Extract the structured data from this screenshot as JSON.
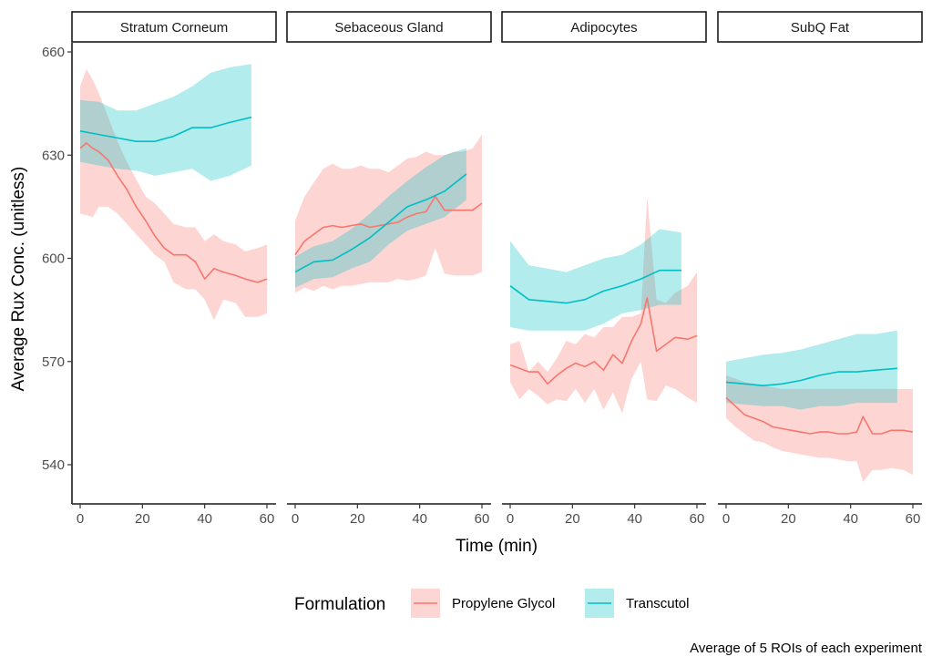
{
  "chart_data": {
    "type": "line",
    "title": "",
    "xlabel": "Time (min)",
    "ylabel": "Average Rux Conc. (unitless)",
    "caption": "Average of 5 ROIs of each experiment",
    "xlim": [
      -2,
      62
    ],
    "ylim": [
      529,
      663
    ],
    "x_ticks": [
      0,
      20,
      40,
      60
    ],
    "x_tick_labels": [
      "0",
      "20",
      "40",
      "60"
    ],
    "y_ticks": [
      540,
      570,
      600,
      630,
      660
    ],
    "y_tick_labels": [
      "540",
      "570",
      "600",
      "630",
      "660"
    ],
    "grid": false,
    "legend": {
      "title": "Formulation",
      "position": "bottom",
      "entries": [
        {
          "name": "Propylene Glycol",
          "line_color": "#F8766D",
          "fill_color": "#F8766D"
        },
        {
          "name": "Transcutol",
          "line_color": "#00BFC4",
          "fill_color": "#00BFC4"
        }
      ]
    },
    "panels": [
      {
        "label": "Stratum Corneum",
        "series": [
          {
            "name": "Propylene Glycol",
            "x": [
              0,
              2,
              4,
              6,
              9,
              12,
              15,
              18,
              21,
              24,
              27,
              30,
              34,
              37,
              40,
              43,
              46,
              50,
              53,
              57,
              60
            ],
            "mean": [
              632,
              633.5,
              632,
              631,
              628.5,
              624,
              620,
              615,
              611,
              606.5,
              603,
              601,
              601,
              599,
              594,
              597,
              596,
              595,
              594,
              593,
              594
            ],
            "lower": [
              613,
              612.5,
              612,
              615,
              615,
              613,
              610,
              607,
              604,
              601,
              599,
              593,
              591,
              591,
              588,
              582,
              588,
              587,
              583,
              583,
              584
            ],
            "upper": [
              650,
              655,
              652,
              648,
              641,
              634,
              628,
              623,
              618,
              616,
              613,
              610,
              609,
              609,
              605,
              607,
              605,
              604,
              602,
              603,
              604
            ]
          },
          {
            "name": "Transcutol",
            "x": [
              0,
              6,
              12,
              18,
              24,
              30,
              36,
              42,
              48,
              55
            ],
            "mean": [
              637,
              636,
              635,
              634,
              634,
              635.5,
              638,
              638,
              639.5,
              641
            ],
            "lower": [
              628,
              627,
              626,
              625.5,
              624,
              625,
              626,
              622.5,
              624,
              627
            ],
            "upper": [
              646,
              645.5,
              643,
              643,
              645,
              647,
              650,
              654,
              655.5,
              656.5
            ]
          }
        ]
      },
      {
        "label": "Sebaceous Gland",
        "series": [
          {
            "name": "Propylene Glycol",
            "x": [
              0,
              3,
              6,
              9,
              12,
              15,
              18,
              21,
              24,
              27,
              30,
              33,
              36,
              39,
              42,
              45,
              48,
              51,
              54,
              57,
              60
            ],
            "mean": [
              601,
              605,
              607,
              609,
              609.5,
              609,
              609.5,
              610,
              609,
              609.5,
              610,
              610.5,
              612,
              613,
              613.5,
              618,
              614,
              614,
              614,
              614,
              616
            ],
            "lower": [
              590,
              591.5,
              590.5,
              592,
              591,
              592,
              592,
              592.5,
              593,
              593,
              593,
              594,
              593.5,
              594,
              595,
              603,
              595.5,
              595,
              595,
              595,
              596
            ],
            "upper": [
              611,
              618,
              622,
              626,
              627.5,
              626,
              626,
              627,
              626,
              626,
              625,
              627,
              629,
              629.5,
              631,
              630,
              630,
              631,
              631,
              632,
              636
            ]
          },
          {
            "name": "Transcutol",
            "x": [
              0,
              6,
              12,
              18,
              24,
              30,
              36,
              42,
              48,
              55
            ],
            "mean": [
              596,
              599,
              599.5,
              602.5,
              606,
              610.5,
              615,
              617,
              619.5,
              624.5
            ],
            "lower": [
              591.5,
              594,
              594.5,
              597,
              599,
              604,
              608,
              610,
              612,
              617
            ],
            "upper": [
              600.5,
              603.5,
              605,
              608.5,
              613,
              618,
              622.5,
              626.5,
              630,
              632
            ]
          }
        ]
      },
      {
        "label": "Adipocytes",
        "series": [
          {
            "name": "Propylene Glycol",
            "x": [
              0,
              3,
              6,
              9,
              12,
              15,
              18,
              21,
              24,
              27,
              30,
              33,
              36,
              39,
              42,
              44,
              47,
              50,
              53,
              57,
              60
            ],
            "mean": [
              569,
              568,
              567,
              567,
              563.5,
              566,
              568,
              569.5,
              568.5,
              570,
              567.5,
              572,
              569.5,
              576,
              581,
              588.5,
              573,
              575,
              577,
              576.5,
              577.5
            ],
            "lower": [
              564,
              559,
              562,
              560,
              557.5,
              559,
              558.5,
              562,
              558,
              562,
              556,
              561,
              555,
              565,
              570,
              559,
              558.5,
              563,
              562,
              559.5,
              558
            ],
            "upper": [
              575,
              576,
              567,
              570,
              567,
              571,
              576,
              575,
              578,
              577,
              580,
              580,
              583,
              583,
              584,
              618,
              588,
              587,
              590,
              592,
              596
            ]
          },
          {
            "name": "Transcutol",
            "x": [
              0,
              6,
              12,
              18,
              24,
              30,
              36,
              42,
              48,
              55
            ],
            "mean": [
              592,
              588,
              587.5,
              587,
              588,
              590.5,
              592,
              594,
              596.5,
              596.5
            ],
            "lower": [
              580,
              579,
              579,
              579,
              579,
              581,
              584,
              585,
              586.5,
              586.5
            ],
            "upper": [
              605,
              598,
              597,
              596,
              598,
              600,
              601,
              604,
              608.5,
              607.5
            ]
          }
        ]
      },
      {
        "label": "SubQ Fat",
        "series": [
          {
            "name": "Propylene Glycol",
            "x": [
              0,
              3,
              6,
              9,
              12,
              15,
              18,
              21,
              24,
              27,
              30,
              33,
              36,
              39,
              42,
              44,
              47,
              50,
              53,
              57,
              60
            ],
            "mean": [
              559.5,
              557,
              554.5,
              553.5,
              552.5,
              551,
              550.5,
              550,
              549.5,
              549,
              549.5,
              549.5,
              549,
              549,
              549.5,
              554,
              549,
              549,
              550,
              550,
              549.5
            ],
            "lower": [
              553.5,
              551,
              549,
              547,
              546.5,
              545,
              544,
              543.5,
              543,
              542.5,
              542,
              542,
              541.5,
              541,
              541,
              535,
              538.5,
              538.5,
              539,
              538.5,
              537
            ],
            "upper": [
              566,
              565,
              564,
              563.5,
              563,
              562.5,
              562,
              562,
              562,
              562,
              562,
              562,
              562,
              562,
              562,
              562,
              562,
              562,
              562,
              562,
              562
            ]
          },
          {
            "name": "Transcutol",
            "x": [
              0,
              6,
              12,
              18,
              24,
              30,
              36,
              42,
              48,
              55
            ],
            "mean": [
              564,
              563.5,
              563,
              563.5,
              564.5,
              566,
              567,
              567,
              567.5,
              568
            ],
            "lower": [
              558,
              557.5,
              557,
              557,
              556,
              557,
              557,
              558,
              558,
              558
            ],
            "upper": [
              570,
              571,
              572,
              572.5,
              573.5,
              575,
              576.5,
              578,
              578,
              579
            ]
          }
        ]
      }
    ]
  }
}
